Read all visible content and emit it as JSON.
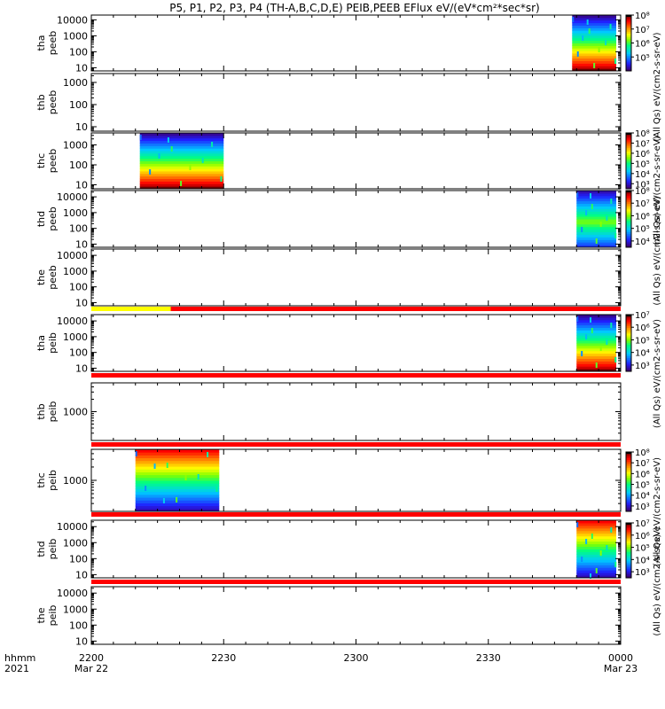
{
  "chart_data": {
    "type": "heatmap",
    "title": "P5, P1, P2, P3, P4 (TH-A,B,C,D,E) PEIB,PEEB EFlux eV/(eV*cm²*sec*sr)",
    "x_time_ticks": [
      "2200",
      "2230",
      "2300",
      "2330",
      "0000"
    ],
    "x_date_labels": [
      "Mar 22",
      "Mar 23"
    ],
    "x_corner_labels": [
      "hhmm",
      "2021"
    ],
    "x_range_minutes": [
      0,
      120
    ],
    "colorbar_label": "eV/(cm2-s-sr-eV)",
    "colorbar_prefix": "(All Qs)",
    "panels": [
      {
        "id": "tha-peeb",
        "probe": "tha",
        "species": "peeb",
        "yticks": [
          "10000",
          "1000",
          "100",
          "10"
        ],
        "ylim_log": [
          0.8,
          4.3
        ],
        "mode": "low-high",
        "blocks": [
          {
            "x_start": 109,
            "x_end": 119
          }
        ],
        "colorbar": {
          "ticks": [
            "10⁸",
            "10⁷",
            "10⁶",
            "10⁵"
          ],
          "range_log": [
            4,
            8
          ]
        },
        "strip": null
      },
      {
        "id": "thb-peeb",
        "probe": "thb",
        "species": "peeb",
        "yticks": [
          "1000",
          "100",
          "10"
        ],
        "ylim_log": [
          0.8,
          3.4
        ],
        "mode": "none",
        "blocks": [],
        "colorbar": null,
        "strip": null
      },
      {
        "id": "thc-peeb",
        "probe": "thc",
        "species": "peeb",
        "yticks": [
          "1000",
          "100",
          "10"
        ],
        "ylim_log": [
          0.8,
          3.6
        ],
        "mode": "low-high",
        "blocks": [
          {
            "x_start": 11,
            "x_end": 30
          }
        ],
        "colorbar": {
          "ticks": [
            "10⁸",
            "10⁷",
            "10⁶",
            "10⁵",
            "10⁴",
            "10³"
          ],
          "range_log": [
            2.5,
            8
          ]
        },
        "strip": null
      },
      {
        "id": "thd-peeb",
        "probe": "thd",
        "species": "peeb",
        "yticks": [
          "10000",
          "1000",
          "100",
          "10"
        ],
        "ylim_log": [
          0.8,
          4.4
        ],
        "mode": "mid",
        "blocks": [
          {
            "x_start": 110,
            "x_end": 119
          }
        ],
        "colorbar": {
          "ticks": [
            "10⁸",
            "10⁷",
            "10⁶",
            "10⁵",
            "10⁴"
          ],
          "range_log": [
            3.5,
            8
          ]
        },
        "strip": null
      },
      {
        "id": "the-peeb",
        "probe": "the",
        "species": "peeb",
        "yticks": [
          "10000",
          "1000",
          "100",
          "10"
        ],
        "ylim_log": [
          0.8,
          4.4
        ],
        "mode": "none",
        "blocks": [],
        "colorbar": null,
        "strip": {
          "segments": [
            {
              "x_start": 0,
              "x_end": 18,
              "color": "#ffff00"
            },
            {
              "x_start": 18,
              "x_end": 120,
              "color": "#ff0000"
            }
          ]
        }
      },
      {
        "id": "tha-peib",
        "probe": "tha",
        "species": "peib",
        "yticks": [
          "10000",
          "1000",
          "100",
          "10"
        ],
        "ylim_log": [
          0.8,
          4.4
        ],
        "mode": "low-high",
        "blocks": [
          {
            "x_start": 110,
            "x_end": 119
          }
        ],
        "colorbar": {
          "ticks": [
            "10⁷",
            "10⁶",
            "10⁵",
            "10⁴",
            "10³"
          ],
          "range_log": [
            2.5,
            7
          ]
        },
        "strip": {
          "segments": [
            {
              "x_start": 0,
              "x_end": 120,
              "color": "#ff0000"
            }
          ]
        }
      },
      {
        "id": "thb-peib",
        "probe": "thb",
        "species": "peib",
        "yticks": [
          "1000"
        ],
        "ylim_log": [
          2.3,
          3.7
        ],
        "mode": "none",
        "blocks": [],
        "colorbar": null,
        "strip": {
          "segments": [
            {
              "x_start": 0,
              "x_end": 120,
              "color": "#ff0000"
            }
          ]
        }
      },
      {
        "id": "thc-peib",
        "probe": "thc",
        "species": "peib",
        "yticks": [
          "1000"
        ],
        "ylim_log": [
          2.3,
          3.7
        ],
        "mode": "high-low",
        "blocks": [
          {
            "x_start": 10,
            "x_end": 29
          }
        ],
        "colorbar": {
          "ticks": [
            "10⁸",
            "10⁷",
            "10⁶",
            "10⁵",
            "10⁴",
            "10³"
          ],
          "range_log": [
            2.5,
            8
          ]
        },
        "strip": {
          "segments": [
            {
              "x_start": 0,
              "x_end": 120,
              "color": "#ff0000"
            }
          ]
        }
      },
      {
        "id": "thd-peib",
        "probe": "thd",
        "species": "peib",
        "yticks": [
          "10000",
          "1000",
          "100",
          "10"
        ],
        "ylim_log": [
          0.8,
          4.4
        ],
        "mode": "high-low",
        "blocks": [
          {
            "x_start": 110,
            "x_end": 119
          }
        ],
        "colorbar": {
          "ticks": [
            "10⁷",
            "10⁶",
            "10⁵",
            "10⁴",
            "10³"
          ],
          "range_log": [
            2.5,
            7
          ]
        },
        "strip": {
          "segments": [
            {
              "x_start": 0,
              "x_end": 120,
              "color": "#ff0000"
            }
          ]
        }
      },
      {
        "id": "the-peib",
        "probe": "the",
        "species": "peib",
        "yticks": [
          "10000",
          "1000",
          "100",
          "10"
        ],
        "ylim_log": [
          0.8,
          4.4
        ],
        "mode": "none",
        "blocks": [],
        "colorbar": null,
        "strip": null
      }
    ]
  }
}
